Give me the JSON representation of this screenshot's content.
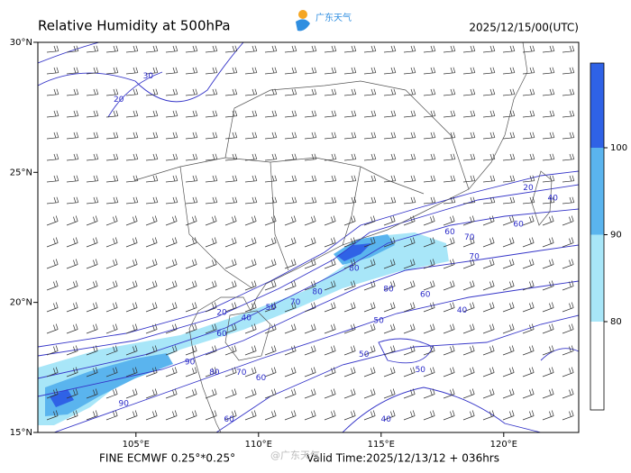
{
  "header": {
    "title": "Relative Humidity at 500hPa",
    "logo_text": "广东天气",
    "time": "2025/12/15/00(UTC)"
  },
  "map": {
    "lon_ticks": [
      {
        "value": 105,
        "label": "105°E"
      },
      {
        "value": 110,
        "label": "110°E"
      },
      {
        "value": 115,
        "label": "115°E"
      },
      {
        "value": 120,
        "label": "120°E"
      }
    ],
    "lat_ticks": [
      {
        "value": 15,
        "label": "15°N"
      },
      {
        "value": 20,
        "label": "20°N"
      },
      {
        "value": 25,
        "label": "25°N"
      },
      {
        "value": 30,
        "label": "30°N"
      }
    ],
    "contour_labels": [
      {
        "value": 20,
        "lon": 104.3,
        "lat": 27.8
      },
      {
        "value": 30,
        "lon": 105.5,
        "lat": 28.7
      },
      {
        "value": 20,
        "lon": 121.0,
        "lat": 24.4
      },
      {
        "value": 40,
        "lon": 122.0,
        "lat": 24.0
      },
      {
        "value": 60,
        "lon": 120.6,
        "lat": 23.0
      },
      {
        "value": 70,
        "lon": 118.6,
        "lat": 22.5
      },
      {
        "value": 60,
        "lon": 117.8,
        "lat": 22.7
      },
      {
        "value": 70,
        "lon": 118.8,
        "lat": 21.75
      },
      {
        "value": 80,
        "lon": 113.9,
        "lat": 21.3
      },
      {
        "value": 80,
        "lon": 115.3,
        "lat": 20.5
      },
      {
        "value": 60,
        "lon": 116.8,
        "lat": 20.3
      },
      {
        "value": 40,
        "lon": 118.3,
        "lat": 19.7
      },
      {
        "value": 50,
        "lon": 114.9,
        "lat": 19.3
      },
      {
        "value": 80,
        "lon": 112.4,
        "lat": 20.4
      },
      {
        "value": 70,
        "lon": 111.5,
        "lat": 20.0
      },
      {
        "value": 50,
        "lon": 110.5,
        "lat": 19.8
      },
      {
        "value": 40,
        "lon": 109.5,
        "lat": 19.4
      },
      {
        "value": 20,
        "lon": 108.5,
        "lat": 19.6
      },
      {
        "value": 60,
        "lon": 108.5,
        "lat": 18.8
      },
      {
        "value": 90,
        "lon": 107.2,
        "lat": 17.7
      },
      {
        "value": 80,
        "lon": 108.2,
        "lat": 17.3
      },
      {
        "value": 70,
        "lon": 109.3,
        "lat": 17.3
      },
      {
        "value": 60,
        "lon": 110.1,
        "lat": 17.1
      },
      {
        "value": 90,
        "lon": 104.5,
        "lat": 16.1
      },
      {
        "value": 50,
        "lon": 116.6,
        "lat": 17.4
      },
      {
        "value": 40,
        "lon": 115.2,
        "lat": 15.5
      },
      {
        "value": 60,
        "lon": 108.8,
        "lat": 15.5
      },
      {
        "value": 50,
        "lon": 114.3,
        "lat": 18.0
      }
    ]
  },
  "colorbar": {
    "levels": [
      80,
      90,
      100
    ],
    "colors": [
      "#ffffff",
      "#a8e6f8",
      "#5ab4ee",
      "#2f62e6"
    ]
  },
  "footer": {
    "model": "FINE ECMWF 0.25°*0.25°",
    "valid": "Valid Time:2025/12/13/12 + 036hrs",
    "watermark": "@广东天气"
  }
}
